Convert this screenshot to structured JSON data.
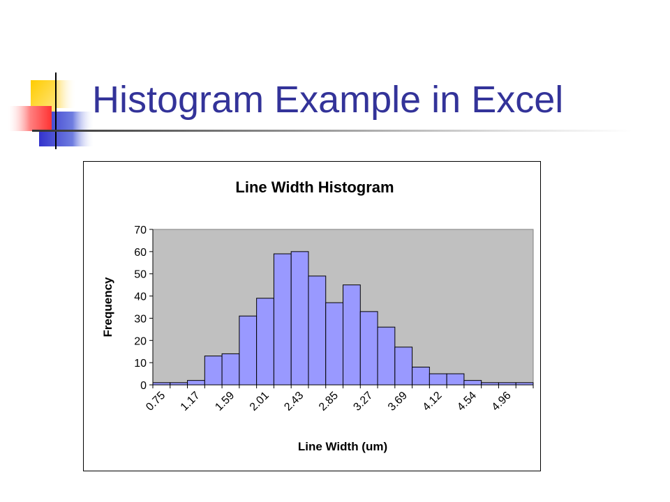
{
  "slide": {
    "title": "Histogram Example in Excel"
  },
  "colors": {
    "title": "#333399",
    "plot_background": "#c0c0c0",
    "bar_fill": "#9999ff",
    "bar_stroke": "#000000",
    "deco_yellow": "#ffcc00",
    "deco_blue": "#3333cc",
    "deco_red": "#ff3333"
  },
  "chart_data": {
    "type": "bar",
    "title": "Line Width Histogram",
    "xlabel": "Line Width (um)",
    "ylabel": "Frequency",
    "ylim": [
      0,
      70
    ],
    "yticks": [
      0,
      10,
      20,
      30,
      40,
      50,
      60,
      70
    ],
    "xtick_labels": [
      "0.75",
      "1.17",
      "1.59",
      "2.01",
      "2.43",
      "2.85",
      "3.27",
      "3.69",
      "4.12",
      "4.54",
      "4.96"
    ],
    "values": [
      1,
      1,
      2,
      13,
      14,
      31,
      39,
      59,
      60,
      49,
      37,
      45,
      33,
      26,
      17,
      8,
      5,
      5,
      2,
      1,
      1,
      1
    ],
    "grid": false,
    "legend": "none"
  }
}
